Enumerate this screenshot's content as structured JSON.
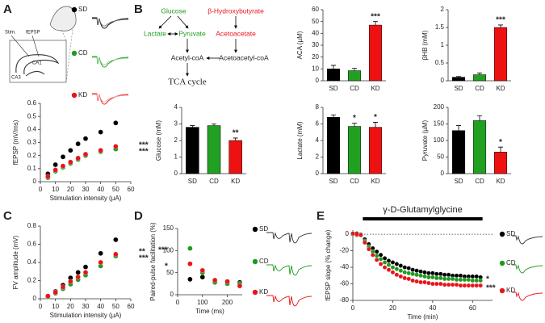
{
  "panels": [
    "A",
    "B",
    "C",
    "D",
    "E"
  ],
  "schematic": {
    "stim": "Stim.",
    "fepsp": "fEPSP",
    "ca1": "CA1",
    "ca3": "CA3"
  },
  "pathway": {
    "glucose": "Glucose",
    "bhb": "β-Hydroxybutyrate",
    "lactate": "Lactate",
    "pyruvate": "Pyruvate",
    "acetoacetate": "Acetoacetate",
    "acetylcoa": "Acetyl-coA",
    "acetoacetylcoa": "Acetoacetyl-coA",
    "tca": "TCA cycle"
  },
  "chart_data": [
    {
      "type": "scatter",
      "xlabel": "Stimulation intensity (µA)",
      "ylabel": "fEPSP (mV/ms)",
      "x": [
        5,
        10,
        15,
        20,
        25,
        30,
        40,
        50
      ],
      "series": [
        {
          "name": "SD",
          "color": "#000000",
          "values": [
            0.06,
            0.13,
            0.19,
            0.24,
            0.29,
            0.33,
            0.38,
            0.45
          ]
        },
        {
          "name": "CD",
          "color": "#1f9a1f",
          "values": [
            0.03,
            0.08,
            0.11,
            0.14,
            0.17,
            0.2,
            0.23,
            0.25
          ]
        },
        {
          "name": "KD",
          "color": "#e8141b",
          "values": [
            0.04,
            0.09,
            0.12,
            0.15,
            0.18,
            0.21,
            0.24,
            0.27
          ]
        }
      ],
      "xlim": [
        0,
        60
      ],
      "xticks": [
        0,
        10,
        20,
        30,
        40,
        50,
        60
      ],
      "ylim": [
        0,
        0.6
      ],
      "yticks": [
        0,
        0.1,
        0.2,
        0.3,
        0.4,
        0.5,
        0.6
      ],
      "annotations": [
        "***",
        "***"
      ]
    },
    {
      "type": "bar",
      "ylabel": "ACA (µM)",
      "categories": [
        "SD",
        "CD",
        "KD"
      ],
      "values": [
        10,
        8.5,
        47
      ],
      "errors": [
        3,
        2,
        3
      ],
      "colors": [
        "#000000",
        "#22a022",
        "#ee1111"
      ],
      "ylim": [
        0,
        60
      ],
      "yticks": [
        0,
        10,
        20,
        30,
        40,
        50,
        60
      ],
      "significance": [
        null,
        null,
        "***"
      ]
    },
    {
      "type": "bar",
      "ylabel": "βHB (mM)",
      "categories": [
        "SD",
        "CD",
        "KD"
      ],
      "values": [
        0.1,
        0.17,
        1.5
      ],
      "errors": [
        0.02,
        0.05,
        0.07
      ],
      "colors": [
        "#000000",
        "#22a022",
        "#ee1111"
      ],
      "ylim": [
        0,
        2
      ],
      "yticks": [
        0,
        0.5,
        1,
        1.5,
        2
      ],
      "significance": [
        null,
        null,
        "***"
      ]
    },
    {
      "type": "bar",
      "ylabel": "Glucose (mM)",
      "categories": [
        "SD",
        "CD",
        "KD"
      ],
      "values": [
        2.8,
        2.9,
        2.0
      ],
      "errors": [
        0.1,
        0.1,
        0.15
      ],
      "colors": [
        "#000000",
        "#22a022",
        "#ee1111"
      ],
      "ylim": [
        0,
        4
      ],
      "yticks": [
        0,
        1,
        2,
        3,
        4
      ],
      "significance": [
        null,
        null,
        "**"
      ]
    },
    {
      "type": "bar",
      "ylabel": "Lactate (mM)",
      "categories": [
        "SD",
        "CD",
        "KD"
      ],
      "values": [
        6.8,
        5.7,
        5.6
      ],
      "errors": [
        0.3,
        0.4,
        0.6
      ],
      "colors": [
        "#000000",
        "#22a022",
        "#ee1111"
      ],
      "ylim": [
        0,
        8
      ],
      "yticks": [
        0,
        2,
        4,
        6,
        8
      ],
      "significance": [
        null,
        "*",
        "*"
      ]
    },
    {
      "type": "bar",
      "ylabel": "Pyruvate (µM)",
      "categories": [
        "SD",
        "CD",
        "KD"
      ],
      "values": [
        130,
        160,
        65
      ],
      "errors": [
        15,
        15,
        15
      ],
      "colors": [
        "#000000",
        "#22a022",
        "#ee1111"
      ],
      "ylim": [
        0,
        200
      ],
      "yticks": [
        0,
        50,
        100,
        150,
        200
      ],
      "significance": [
        null,
        null,
        "*"
      ]
    },
    {
      "type": "scatter",
      "xlabel": "Stimulation intensity (µA)",
      "ylabel": "FV amplitude (mV)",
      "x": [
        5,
        10,
        15,
        20,
        25,
        30,
        40,
        50
      ],
      "series": [
        {
          "color": "#000000",
          "values": [
            0.02,
            0.08,
            0.15,
            0.23,
            0.29,
            0.35,
            0.5,
            0.65
          ]
        },
        {
          "color": "#1f9a1f",
          "values": [
            0.02,
            0.06,
            0.11,
            0.16,
            0.21,
            0.26,
            0.36,
            0.47
          ]
        },
        {
          "color": "#e8141b",
          "values": [
            0.03,
            0.07,
            0.13,
            0.19,
            0.24,
            0.29,
            0.4,
            0.49
          ]
        }
      ],
      "xlim": [
        0,
        60
      ],
      "xticks": [
        0,
        10,
        20,
        30,
        40,
        50,
        60
      ],
      "ylim": [
        0,
        0.8
      ],
      "yticks": [
        0,
        0.2,
        0.4,
        0.6,
        0.8
      ],
      "annotations": [
        "**",
        "***"
      ]
    },
    {
      "type": "scatter",
      "xlabel": "Time (ms)",
      "ylabel": "Paired-pulse facilitation (%)",
      "x": [
        50,
        100,
        150,
        200,
        250
      ],
      "series": [
        {
          "name": "SD",
          "color": "#000000",
          "values": [
            35,
            40,
            30,
            30,
            28
          ]
        },
        {
          "name": "CD",
          "color": "#1f9a1f",
          "values": [
            105,
            50,
            28,
            25,
            25
          ]
        },
        {
          "name": "KD",
          "color": "#e8141b",
          "values": [
            70,
            55,
            33,
            30,
            20
          ]
        }
      ],
      "xlim": [
        0,
        260
      ],
      "xticks": [
        0,
        100,
        200
      ],
      "ylim": [
        0,
        150
      ],
      "yticks": [
        0,
        50,
        100,
        150
      ],
      "annotations": [
        "***",
        "*"
      ]
    },
    {
      "type": "scatter",
      "xlabel": "Time (min)",
      "ylabel": "fEPSP slope (% change)",
      "x": [
        0,
        2,
        4,
        6,
        8,
        10,
        12,
        14,
        16,
        18,
        20,
        22,
        24,
        26,
        28,
        30,
        32,
        34,
        36,
        38,
        40,
        42,
        44,
        46,
        48,
        50,
        52,
        54,
        56,
        58,
        60,
        62,
        64
      ],
      "series": [
        {
          "name": "SD",
          "color": "#000000",
          "values": [
            0,
            1,
            -1,
            -6,
            -12,
            -17,
            -21,
            -25,
            -29,
            -32,
            -34,
            -36,
            -38,
            -40,
            -41,
            -43,
            -44,
            -45,
            -46,
            -47,
            -47,
            -48,
            -48,
            -49,
            -49,
            -50,
            -50,
            -50,
            -51,
            -51,
            -51,
            -51,
            -52
          ]
        },
        {
          "name": "CD",
          "color": "#1f9a1f",
          "values": [
            0,
            -1,
            0,
            -8,
            -15,
            -21,
            -26,
            -30,
            -34,
            -37,
            -40,
            -42,
            -44,
            -46,
            -47,
            -48,
            -49,
            -50,
            -51,
            -52,
            -52,
            -53,
            -53,
            -54,
            -54,
            -54,
            -55,
            -55,
            -55,
            -55,
            -56,
            -56,
            -56
          ]
        },
        {
          "name": "KD",
          "color": "#e8141b",
          "values": [
            1,
            0,
            -1,
            -10,
            -18,
            -25,
            -31,
            -36,
            -40,
            -43,
            -46,
            -49,
            -51,
            -53,
            -54,
            -56,
            -57,
            -58,
            -58,
            -59,
            -60,
            -60,
            -60,
            -61,
            -61,
            -61,
            -61,
            -62,
            -62,
            -62,
            -62,
            -62,
            -62
          ]
        }
      ],
      "xlim": [
        0,
        70
      ],
      "xticks": [
        0,
        20,
        40,
        60
      ],
      "ylim": [
        -80,
        5
      ],
      "yticks": [
        0,
        -20,
        -40,
        -60,
        -80
      ],
      "annotations": [
        "*",
        "***"
      ],
      "application": {
        "label": "γ-D-Glutamylglycine",
        "start": 5,
        "end": 65
      }
    }
  ]
}
